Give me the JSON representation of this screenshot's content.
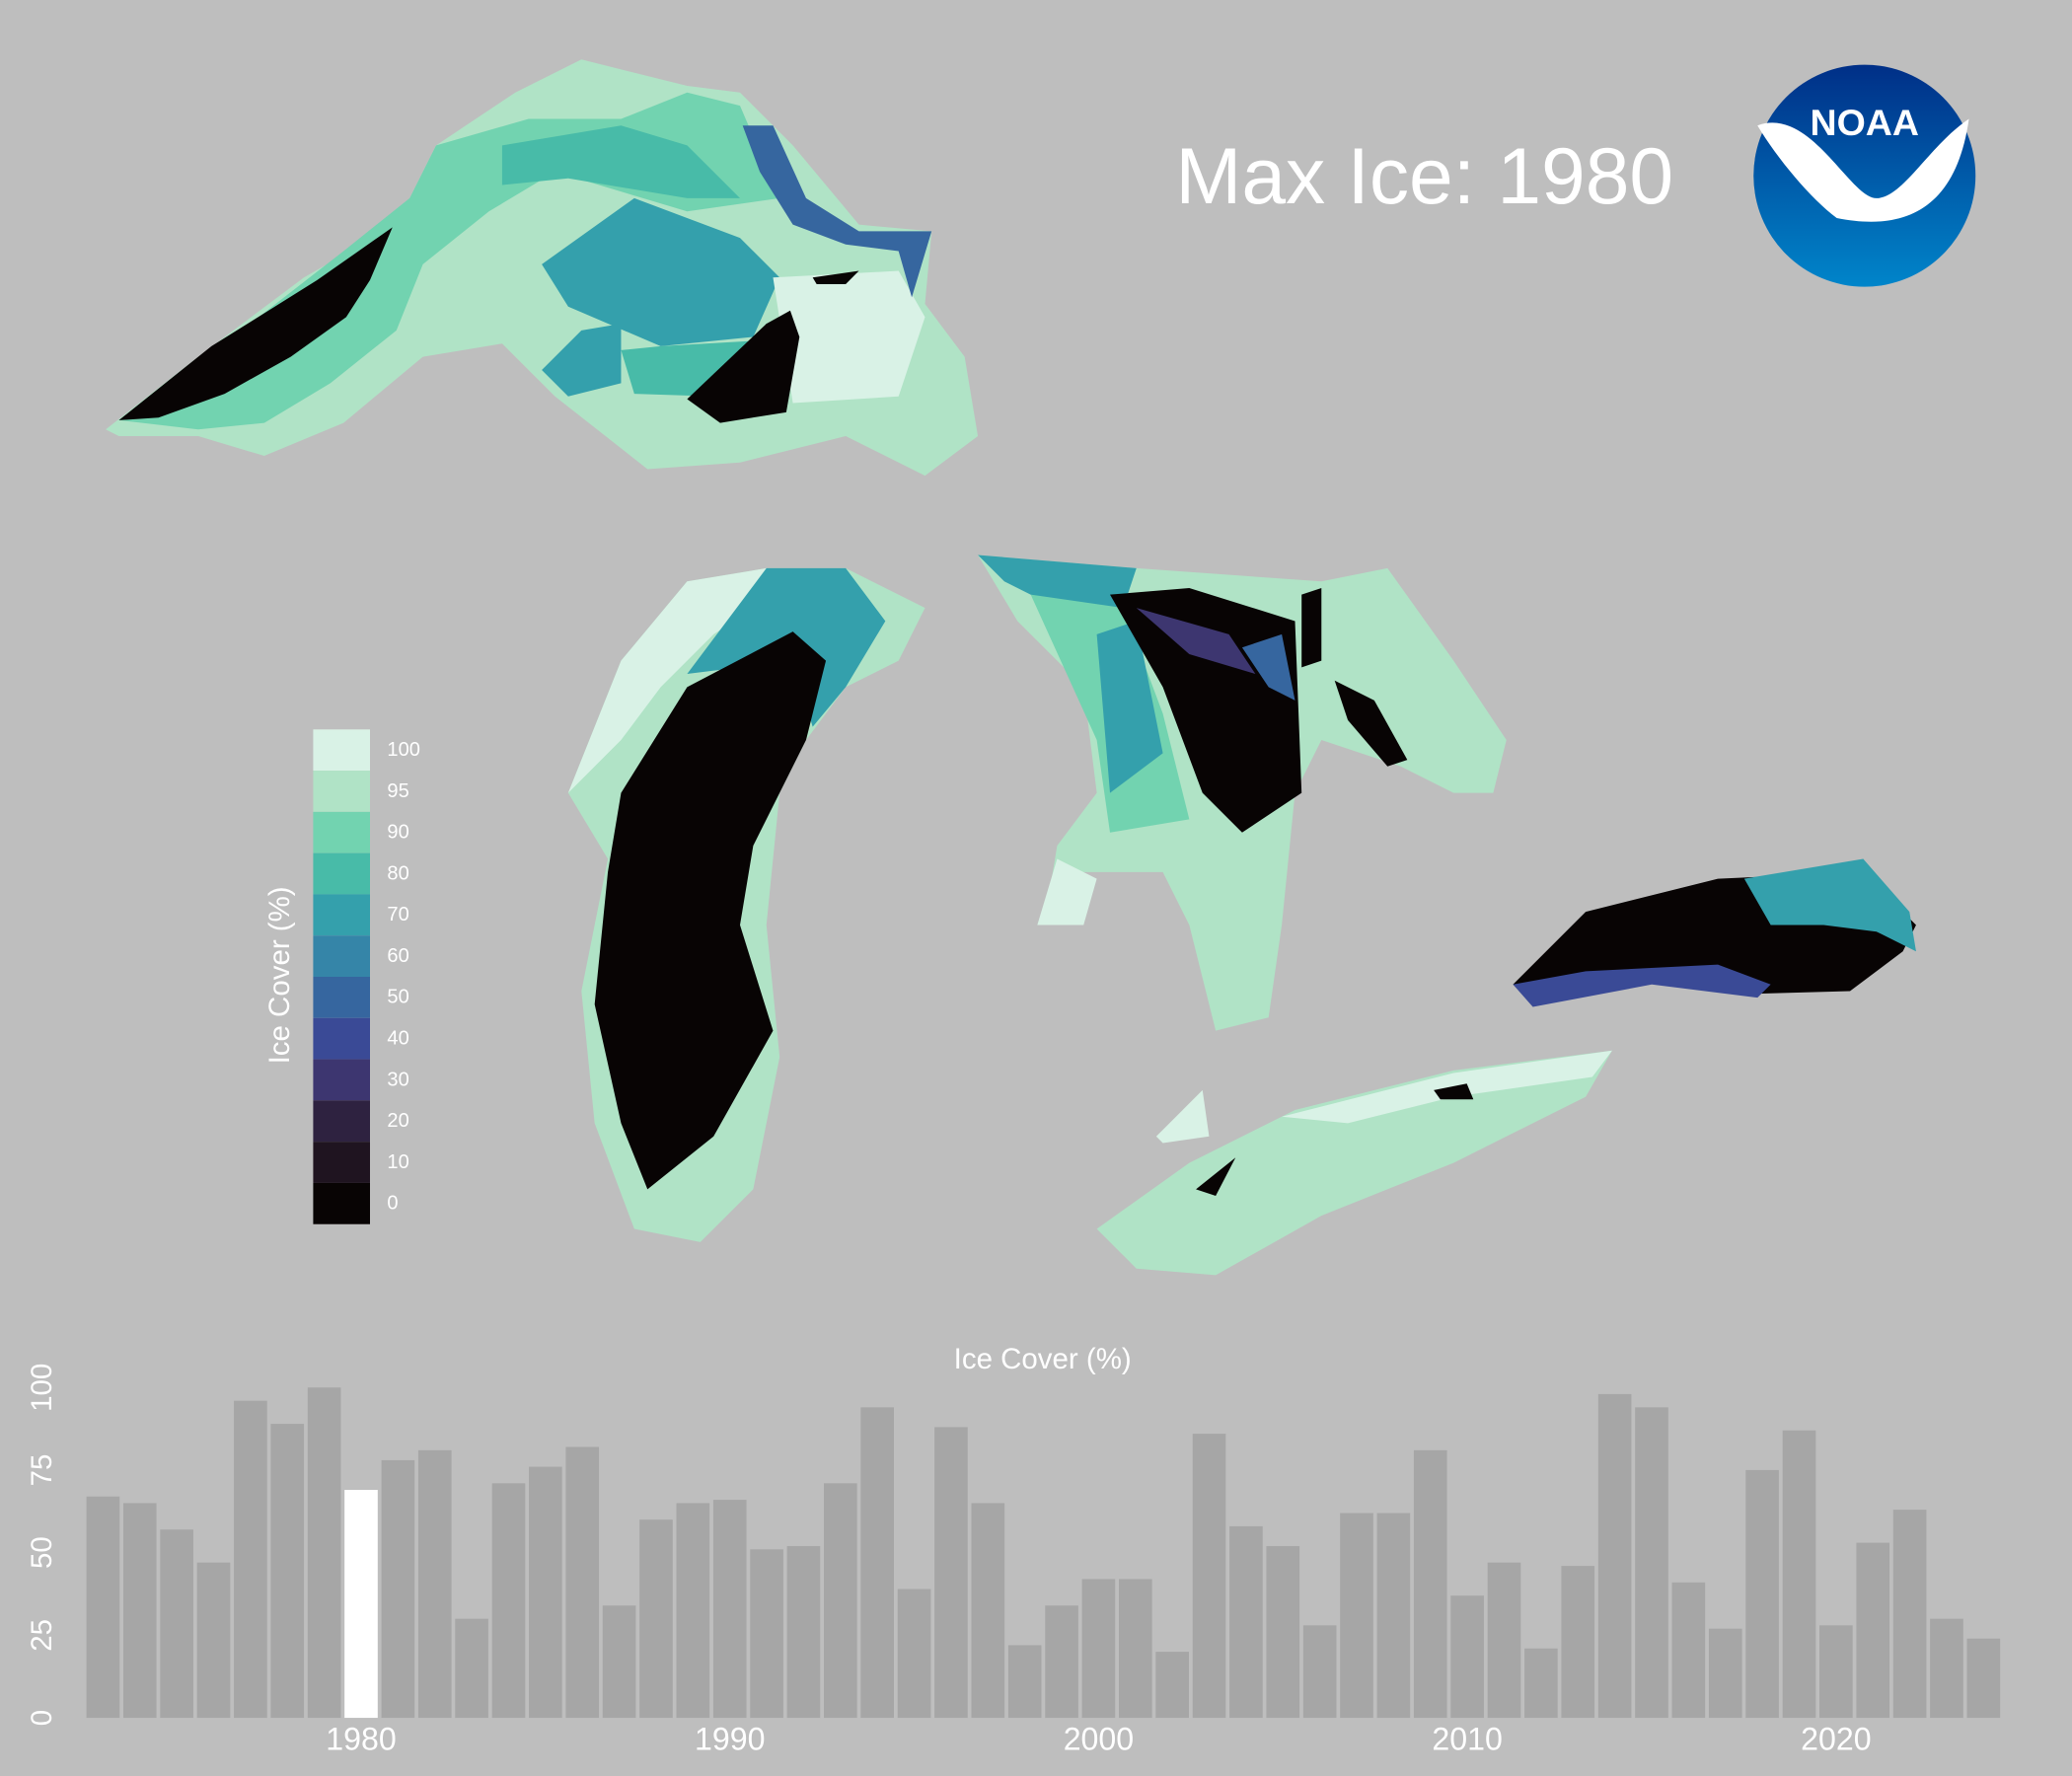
{
  "title": "Max Ice: 1980",
  "logo_text": "NOAA",
  "legend": {
    "title": "Ice Cover (%)",
    "ticks": [
      100,
      95,
      90,
      80,
      70,
      60,
      50,
      40,
      30,
      20,
      10,
      0
    ],
    "colors": [
      "#d9f2e6",
      "#b0e3c6",
      "#72d3b0",
      "#48bba8",
      "#34a0ac",
      "#3585a8",
      "#36669f",
      "#3a4a96",
      "#3d3670",
      "#2e2240",
      "#1f1420",
      "#080404"
    ]
  },
  "chart_data": {
    "type": "bar",
    "title": "Ice Cover (%)",
    "x": [
      1973,
      1974,
      1975,
      1976,
      1977,
      1978,
      1979,
      1980,
      1981,
      1982,
      1983,
      1984,
      1985,
      1986,
      1987,
      1988,
      1989,
      1990,
      1991,
      1992,
      1993,
      1994,
      1995,
      1996,
      1997,
      1998,
      1999,
      2000,
      2001,
      2002,
      2003,
      2004,
      2005,
      2006,
      2007,
      2008,
      2009,
      2010,
      2011,
      2012,
      2013,
      2014,
      2015,
      2016,
      2017,
      2018,
      2019,
      2020,
      2021,
      2022,
      2023,
      2024
    ],
    "values": [
      67,
      65,
      57,
      47,
      96,
      89,
      100,
      69,
      78,
      81,
      30,
      71,
      76,
      82,
      34,
      60,
      65,
      66,
      51,
      52,
      71,
      94,
      39,
      88,
      65,
      22,
      34,
      42,
      42,
      20,
      86,
      58,
      52,
      28,
      62,
      62,
      81,
      37,
      47,
      21,
      46,
      98,
      94,
      41,
      27,
      75,
      87,
      28,
      53,
      63,
      30,
      24
    ],
    "color": "#a6a6a6",
    "highlight": 1980,
    "highlight_color": "#ffffff",
    "xlim": [
      1972.5,
      2024.5
    ],
    "xticks": [
      1980,
      1990,
      2000,
      2010,
      2020
    ],
    "ylim": [
      0,
      100
    ],
    "yticks": [
      0,
      25,
      50,
      75,
      100
    ]
  }
}
